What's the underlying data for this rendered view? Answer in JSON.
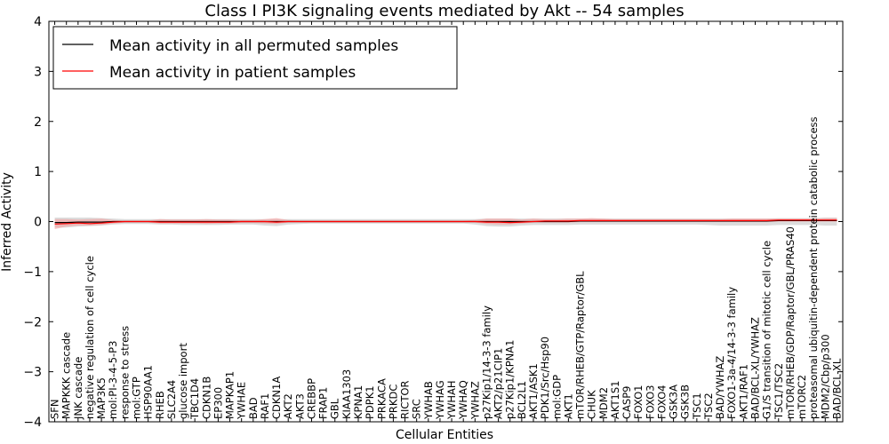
{
  "chart_data": {
    "type": "line",
    "title": "Class I PI3K signaling events mediated by Akt -- 54 samples",
    "xlabel": "Cellular Entities",
    "ylabel": "Inferred Activity",
    "ylim": [
      -4,
      4
    ],
    "yticks": [
      4,
      3,
      2,
      1,
      0,
      -1,
      -2,
      -3,
      -4
    ],
    "ytick_labels": [
      "4",
      "3",
      "2",
      "1",
      "0",
      "−1",
      "−2",
      "−3",
      "−4"
    ],
    "grid": false,
    "legend_position": "top-left",
    "categories": [
      "SFN",
      "MAPKKK cascade",
      "JNK cascade",
      "negative regulation of cell cycle",
      "MAP3K5",
      "mol:PI-3-4-5-P3",
      "response to stress",
      "mol:GTP",
      "HSP90AA1",
      "RHEB",
      "SLC2A4",
      "glucose import",
      "TBC1D4",
      "CDKN1B",
      "EP300",
      "MAPKAP1",
      "YWHAE",
      "BAD",
      "RAF1",
      "CDKN1A",
      "AKT2",
      "AKT3",
      "CREBBP",
      "FRAP1",
      "GBL",
      "KIAA1303",
      "KPNA1",
      "PDPK1",
      "PRKACA",
      "PRKDC",
      "RICTOR",
      "SRC",
      "YWHAB",
      "YWHAG",
      "YWHAH",
      "YWHAQ",
      "YWHAZ",
      "p27Kip1/14-3-3 family",
      "AKT2/p21CIP1",
      "p27Kip1/KPNA1",
      "BCL2L1",
      "AKT1/ASK1",
      "PDK1/Src/Hsp90",
      "mol:GDP",
      "AKT1",
      "mTOR/RHEB/GTP/Raptor/GBL",
      "CHUK",
      "MDM2",
      "AKT1S1",
      "CASP9",
      "FOXO1",
      "FOXO3",
      "FOXO4",
      "GSK3A",
      "GSK3B",
      "TSC1",
      "TSC2",
      "BAD/YWHAZ",
      "FOXO1-3a-4/14-3-3 family",
      "AKT1/RAF1",
      "BAD/BCL-XL/YWHAZ",
      "G1/S transition of mitotic cell cycle",
      "TSC1/TSC2",
      "mTOR/RHEB/GDP/Raptor/GBL/PRAS40",
      "mTORC2",
      "proteasomal ubiquitin-dependent protein catabolic process",
      "MDM2/Cbp/p300",
      "BAD/BCL-XL"
    ],
    "series": [
      {
        "name": "Mean activity in all permuted samples",
        "color": "#000000",
        "band_color": "#bfbfbf",
        "values": [
          -0.02,
          -0.02,
          -0.01,
          -0.01,
          -0.01,
          0,
          0,
          0,
          0,
          0,
          0,
          0,
          0,
          0,
          0,
          0,
          0,
          0,
          0,
          0,
          0,
          0,
          0,
          0,
          0,
          0,
          0,
          0,
          0,
          0,
          0,
          0,
          0,
          0,
          0,
          0,
          0,
          0,
          0,
          0,
          0,
          0,
          0,
          0,
          0,
          0.01,
          0.01,
          0.01,
          0.01,
          0.01,
          0.01,
          0.01,
          0.01,
          0.01,
          0.01,
          0.01,
          0.01,
          0.01,
          0.01,
          0.01,
          0.01,
          0.01,
          0.02,
          0.02,
          0.02,
          0.02,
          0.02,
          0.02
        ],
        "band_lower": [
          -0.12,
          -0.12,
          -0.1,
          -0.09,
          -0.08,
          -0.06,
          -0.05,
          -0.05,
          -0.05,
          -0.06,
          -0.06,
          -0.07,
          -0.07,
          -0.07,
          -0.07,
          -0.06,
          -0.06,
          -0.06,
          -0.08,
          -0.09,
          -0.06,
          -0.05,
          -0.04,
          -0.04,
          -0.04,
          -0.04,
          -0.04,
          -0.04,
          -0.04,
          -0.04,
          -0.04,
          -0.04,
          -0.04,
          -0.04,
          -0.04,
          -0.04,
          -0.06,
          -0.09,
          -0.1,
          -0.1,
          -0.08,
          -0.07,
          -0.07,
          -0.07,
          -0.07,
          -0.06,
          -0.06,
          -0.06,
          -0.06,
          -0.06,
          -0.06,
          -0.06,
          -0.06,
          -0.06,
          -0.06,
          -0.06,
          -0.07,
          -0.08,
          -0.08,
          -0.08,
          -0.08,
          -0.08,
          -0.07,
          -0.07,
          -0.07,
          -0.07,
          -0.08,
          -0.08
        ],
        "band_upper": [
          0.08,
          0.08,
          0.08,
          0.08,
          0.07,
          0.06,
          0.05,
          0.05,
          0.05,
          0.05,
          0.05,
          0.05,
          0.05,
          0.05,
          0.05,
          0.05,
          0.05,
          0.05,
          0.05,
          0.05,
          0.05,
          0.05,
          0.05,
          0.05,
          0.05,
          0.05,
          0.05,
          0.05,
          0.05,
          0.05,
          0.05,
          0.05,
          0.05,
          0.05,
          0.05,
          0.05,
          0.05,
          0.06,
          0.06,
          0.06,
          0.06,
          0.06,
          0.06,
          0.06,
          0.06,
          0.06,
          0.06,
          0.06,
          0.06,
          0.06,
          0.06,
          0.06,
          0.06,
          0.06,
          0.06,
          0.06,
          0.06,
          0.06,
          0.06,
          0.06,
          0.06,
          0.06,
          0.07,
          0.07,
          0.07,
          0.07,
          0.08,
          0.08
        ]
      },
      {
        "name": "Mean activity in patient samples",
        "color": "#ff0000",
        "band_color": "#f4a0a0",
        "values": [
          -0.05,
          -0.04,
          -0.03,
          -0.04,
          -0.03,
          -0.01,
          0,
          0,
          0,
          -0.01,
          -0.01,
          -0.01,
          -0.01,
          -0.01,
          -0.01,
          -0.01,
          0,
          0,
          0,
          -0.01,
          0,
          0,
          0,
          0,
          0,
          0,
          0,
          0,
          0,
          0,
          0,
          0,
          0,
          0,
          0,
          0,
          0,
          -0.01,
          -0.01,
          -0.02,
          -0.01,
          0,
          0.01,
          0.01,
          0.01,
          0.02,
          0.02,
          0.02,
          0.02,
          0.02,
          0.02,
          0.02,
          0.02,
          0.02,
          0.02,
          0.02,
          0.02,
          0.02,
          0.02,
          0.02,
          0.02,
          0.02,
          0.03,
          0.03,
          0.03,
          0.03,
          0.03,
          0.03
        ],
        "band_lower": [
          -0.15,
          -0.1,
          -0.08,
          -0.08,
          -0.07,
          -0.04,
          -0.02,
          -0.02,
          -0.02,
          -0.04,
          -0.04,
          -0.04,
          -0.04,
          -0.05,
          -0.04,
          -0.04,
          -0.03,
          -0.03,
          -0.04,
          -0.05,
          -0.02,
          -0.02,
          -0.02,
          -0.02,
          -0.02,
          -0.02,
          -0.02,
          -0.02,
          -0.02,
          -0.02,
          -0.02,
          -0.02,
          -0.02,
          -0.02,
          -0.02,
          -0.02,
          -0.02,
          -0.05,
          -0.06,
          -0.06,
          -0.04,
          -0.02,
          -0.02,
          -0.02,
          -0.02,
          -0.01,
          -0.01,
          -0.01,
          -0.01,
          -0.01,
          -0.01,
          -0.01,
          -0.01,
          -0.01,
          -0.01,
          -0.01,
          -0.01,
          -0.01,
          -0.01,
          -0.01,
          -0.01,
          -0.01,
          0,
          0,
          0,
          0,
          0,
          0
        ],
        "band_upper": [
          0.05,
          0.05,
          0.04,
          0.05,
          0.06,
          0.03,
          0.02,
          0.02,
          0.02,
          0.05,
          0.04,
          0.04,
          0.04,
          0.05,
          0.04,
          0.04,
          0.03,
          0.03,
          0.05,
          0.07,
          0.03,
          0.02,
          0.02,
          0.02,
          0.02,
          0.02,
          0.02,
          0.02,
          0.02,
          0.02,
          0.02,
          0.02,
          0.02,
          0.02,
          0.02,
          0.02,
          0.03,
          0.06,
          0.06,
          0.06,
          0.04,
          0.06,
          0.05,
          0.05,
          0.06,
          0.06,
          0.07,
          0.06,
          0.05,
          0.05,
          0.05,
          0.05,
          0.05,
          0.05,
          0.05,
          0.05,
          0.05,
          0.05,
          0.06,
          0.06,
          0.06,
          0.06,
          0.06,
          0.06,
          0.06,
          0.06,
          0.07,
          0.07
        ]
      }
    ]
  }
}
